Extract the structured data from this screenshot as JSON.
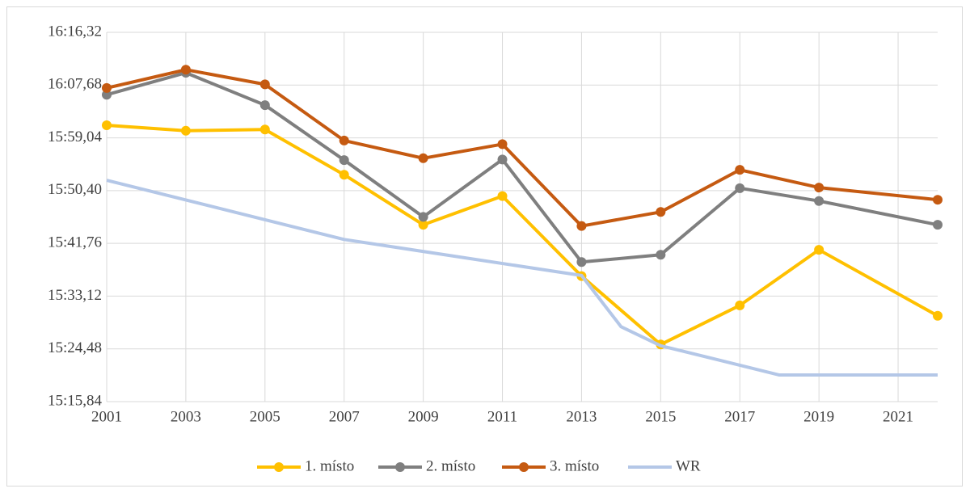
{
  "chart_data": {
    "type": "line",
    "xlim": [
      2001,
      2022
    ],
    "xticks": [
      2001,
      2003,
      2005,
      2007,
      2009,
      2011,
      2013,
      2015,
      2017,
      2019,
      2021
    ],
    "ylim": [
      915.84,
      976.32
    ],
    "yticks": [
      {
        "value": 915.84,
        "label": "15:15,84"
      },
      {
        "value": 924.48,
        "label": "15:24,48"
      },
      {
        "value": 933.12,
        "label": "15:33,12"
      },
      {
        "value": 941.76,
        "label": "15:41,76"
      },
      {
        "value": 950.4,
        "label": "15:50,40"
      },
      {
        "value": 959.04,
        "label": "15:59,04"
      },
      {
        "value": 967.68,
        "label": "16:07,68"
      },
      {
        "value": 976.32,
        "label": "16:16,32"
      }
    ],
    "grid": true,
    "legend": "bottom",
    "series": [
      {
        "name": "1. místo",
        "color": "#ffc000",
        "markers": true,
        "x": [
          2001,
          2003,
          2005,
          2007,
          2009,
          2011,
          2013,
          2015,
          2017,
          2019,
          2022
        ],
        "values": [
          961.1,
          960.2,
          960.4,
          953.0,
          944.8,
          949.5,
          936.4,
          925.2,
          931.6,
          940.7,
          929.9
        ]
      },
      {
        "name": "2. místo",
        "color": "#7f7f7f",
        "markers": true,
        "x": [
          2001,
          2003,
          2005,
          2007,
          2009,
          2011,
          2013,
          2015,
          2017,
          2019,
          2022
        ],
        "values": [
          966.1,
          969.7,
          964.4,
          955.4,
          946.1,
          955.5,
          938.7,
          939.9,
          950.8,
          948.7,
          944.8
        ]
      },
      {
        "name": "3. místo",
        "color": "#c55a11",
        "markers": true,
        "x": [
          2001,
          2003,
          2005,
          2007,
          2009,
          2011,
          2013,
          2015,
          2017,
          2019,
          2022
        ],
        "values": [
          967.2,
          970.2,
          967.8,
          958.6,
          955.7,
          958.0,
          944.6,
          946.9,
          953.8,
          950.9,
          948.9
        ]
      },
      {
        "name": "WR",
        "color": "#b4c7e7",
        "markers": false,
        "x": [
          2001,
          2007,
          2013,
          2014,
          2015,
          2018,
          2022
        ],
        "values": [
          952.1,
          942.4,
          936.5,
          928.1,
          925.0,
          920.2,
          920.2
        ]
      }
    ]
  }
}
